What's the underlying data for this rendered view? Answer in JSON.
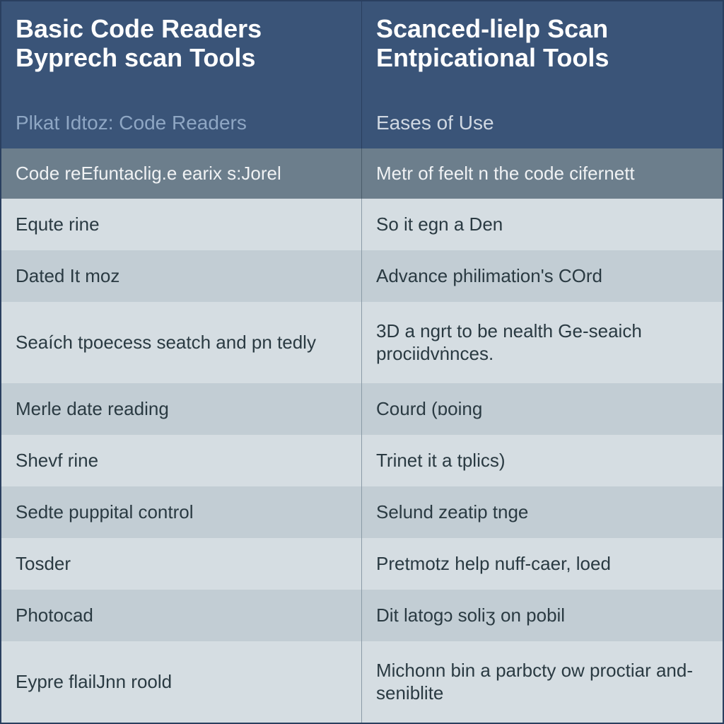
{
  "table": {
    "type": "table",
    "colors": {
      "header_bg": "#3a5478",
      "header_text": "#ffffff",
      "subtitle_text_left": "#8fa7c4",
      "subtitle_text_right": "#d0d8e2",
      "subheader_bg": "#6c7e8c",
      "subheader_text": "#f0f2f4",
      "row_even_bg": "#d5dde2",
      "row_odd_bg": "#c2cdd4",
      "cell_text": "#2a3a42",
      "border": "#2a3f5f",
      "cell_border": "#8a9aa6"
    },
    "typography": {
      "header_fontsize": 36,
      "header_fontweight": 700,
      "subtitle_fontsize": 28,
      "subheader_fontsize": 26,
      "cell_fontsize": 26,
      "font_family": "Segoe UI"
    },
    "columns": [
      {
        "title": "Basic Code Readers Byprech scan Tools",
        "subtitle": "Plkat Idtoz: Code Readers",
        "subheader": "Code reEfuntaclig.e earix s:Jorel"
      },
      {
        "title": "Scanced-lielp Scan Entpicational Tools",
        "subtitle": "Eases of Use",
        "subheader": "Metr of feelt n the code cifernett"
      }
    ],
    "rows": [
      [
        "Equte rine",
        "So it egn a Den"
      ],
      [
        "Dated It moz",
        "Advance philimation's COrd"
      ],
      [
        "Seaích tpoecess seatch and pn tedly",
        "3D a ngrt to be nealth Ge-seaich prociidvṅnces."
      ],
      [
        "Merle date reading",
        "Courd (ɒoing"
      ],
      [
        "Shevf rine",
        "Trinet it a tplics)"
      ],
      [
        "Sedte puppital control",
        "Selund zeatip tnge"
      ],
      [
        "Tosder",
        "Pretmotz help nuff-caer, loed"
      ],
      [
        "Photocad",
        "Dit latogɔ soliʒ on pobil"
      ],
      [
        "Eypre flailJnn roold",
        "Michonn bin a parbcty ow proctiar and-seniblite"
      ]
    ]
  }
}
